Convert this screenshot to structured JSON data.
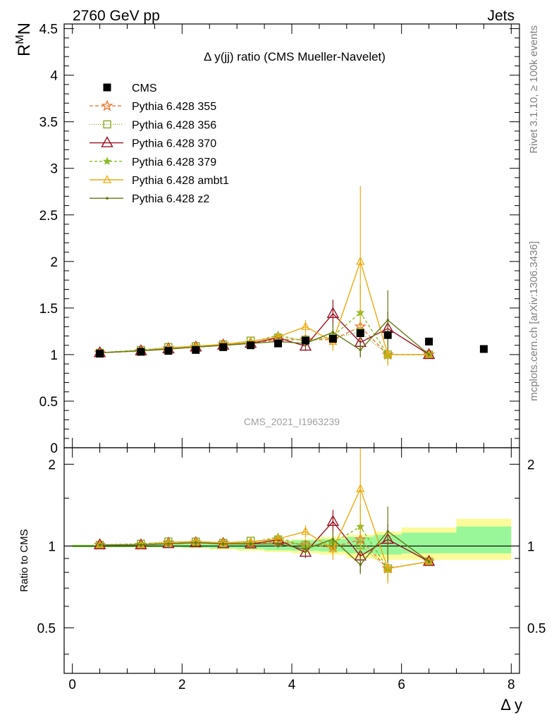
{
  "header": {
    "left": "2760 GeV pp",
    "right": "Jets",
    "side_top": "Rivet 3.1.10, ≥ 100k events",
    "side_bottom": "mcplots.cern.ch [arXiv:1306.3436]"
  },
  "chart_data": {
    "type": "line",
    "title": "Δ y(jj) ratio (CMS Mueller-Navelet)",
    "analysis_label": "CMS_2021_I1963239",
    "xlabel": "Δ y",
    "ylabel": "R^M N",
    "ratio_ylabel": "Ratio to CMS",
    "xlim": [
      -0.15,
      8.15
    ],
    "ylim": [
      0,
      4.55
    ],
    "ratio_ylim": [
      0.34,
      2.3
    ],
    "x_ticks": [
      "0",
      "2",
      "4",
      "6",
      "8"
    ],
    "y_ticks": [
      "0",
      "0.5",
      "1",
      "1.5",
      "2",
      "2.5",
      "3",
      "3.5",
      "4",
      "4.5"
    ],
    "ratio_ticks": [
      "0.5",
      "1",
      "2"
    ],
    "legend_position": "top-left",
    "colors": {
      "cms": "#000000",
      "p355": "#ee7733",
      "p356": "#88aa22",
      "p370": "#991122",
      "p379": "#88bb22",
      "ambt1": "#eeaa11",
      "z2": "#667711",
      "band_inner": "#99f799",
      "band_outer": "#fbfb99"
    },
    "cms": {
      "name": "CMS",
      "x": [
        0.5,
        1.25,
        1.75,
        2.25,
        2.75,
        3.25,
        3.75,
        4.25,
        4.75,
        5.25,
        5.75,
        6.5,
        7.5
      ],
      "y": [
        1.01,
        1.03,
        1.04,
        1.05,
        1.08,
        1.1,
        1.12,
        1.15,
        1.17,
        1.23,
        1.21,
        1.14,
        1.06
      ],
      "bins": [
        [
          0,
          1
        ],
        [
          1,
          1.5
        ],
        [
          1.5,
          2
        ],
        [
          2,
          2.5
        ],
        [
          2.5,
          3
        ],
        [
          3,
          3.5
        ],
        [
          3.5,
          4
        ],
        [
          4,
          4.5
        ],
        [
          4.5,
          5
        ],
        [
          5,
          5.5
        ],
        [
          5.5,
          6
        ],
        [
          6,
          7
        ],
        [
          7,
          8
        ]
      ],
      "band_inner": [
        [
          0.99,
          1.01
        ],
        [
          0.99,
          1.01
        ],
        [
          0.99,
          1.02
        ],
        [
          0.985,
          1.02
        ],
        [
          0.98,
          1.025
        ],
        [
          0.975,
          1.03
        ],
        [
          0.965,
          1.04
        ],
        [
          0.96,
          1.05
        ],
        [
          0.955,
          1.06
        ],
        [
          0.94,
          1.08
        ],
        [
          0.93,
          1.1
        ],
        [
          0.94,
          1.12
        ],
        [
          0.94,
          1.18
        ]
      ],
      "band_outer": [
        [
          0.985,
          1.015
        ],
        [
          0.985,
          1.015
        ],
        [
          0.985,
          1.02
        ],
        [
          0.98,
          1.025
        ],
        [
          0.97,
          1.03
        ],
        [
          0.96,
          1.04
        ],
        [
          0.95,
          1.05
        ],
        [
          0.94,
          1.06
        ],
        [
          0.93,
          1.08
        ],
        [
          0.9,
          1.1
        ],
        [
          0.89,
          1.13
        ],
        [
          0.89,
          1.17
        ],
        [
          0.89,
          1.26
        ]
      ]
    },
    "series": [
      {
        "name": "Pythia 6.428 355",
        "key": "p355",
        "marker": "star",
        "dash": "5,3",
        "x": [
          0.5,
          1.25,
          1.75,
          2.25,
          2.75,
          3.25,
          3.75,
          4.25,
          4.75,
          5.25,
          5.75,
          6.5
        ],
        "y": [
          1.02,
          1.04,
          1.07,
          1.08,
          1.11,
          1.12,
          1.16,
          1.16,
          1.16,
          1.3,
          1.0,
          1.0
        ],
        "err": [
          0.01,
          0.01,
          0.01,
          0.02,
          0.02,
          0.02,
          0.04,
          0.05,
          0.08,
          0.15,
          0.1,
          0.0
        ]
      },
      {
        "name": "Pythia 6.428 356",
        "key": "p356",
        "marker": "square",
        "dash": "1,2",
        "x": [
          0.5,
          1.25,
          1.75,
          2.25,
          2.75,
          3.25,
          3.75,
          4.25,
          4.75,
          5.25,
          5.75,
          6.5
        ],
        "y": [
          1.02,
          1.05,
          1.08,
          1.09,
          1.11,
          1.15,
          1.18,
          1.16,
          1.18,
          1.24,
          1.0,
          1.0
        ],
        "err": [
          0.01,
          0.01,
          0.01,
          0.02,
          0.02,
          0.02,
          0.04,
          0.05,
          0.08,
          0.15,
          0.1,
          0.0
        ]
      },
      {
        "name": "Pythia 6.428 370",
        "key": "p370",
        "marker": "triangle-open",
        "dash": "",
        "x": [
          0.5,
          1.25,
          1.75,
          2.25,
          2.75,
          3.25,
          3.75,
          4.25,
          4.75,
          5.25,
          5.75,
          6.5
        ],
        "y": [
          1.02,
          1.04,
          1.06,
          1.08,
          1.1,
          1.12,
          1.18,
          1.09,
          1.44,
          1.13,
          1.28,
          1.0
        ],
        "err": [
          0.01,
          0.01,
          0.01,
          0.02,
          0.02,
          0.02,
          0.04,
          0.05,
          0.15,
          0.15,
          0.18,
          0.0
        ]
      },
      {
        "name": "Pythia 6.428 379",
        "key": "p379",
        "marker": "star-small",
        "dash": "4,3",
        "x": [
          0.5,
          1.25,
          1.75,
          2.25,
          2.75,
          3.25,
          3.75,
          4.25,
          4.75,
          5.25,
          5.75,
          6.5
        ],
        "y": [
          1.02,
          1.05,
          1.07,
          1.09,
          1.11,
          1.13,
          1.21,
          1.14,
          1.2,
          1.45,
          1.0,
          1.0
        ],
        "err": [
          0.01,
          0.01,
          0.01,
          0.02,
          0.02,
          0.02,
          0.04,
          0.05,
          0.08,
          0.3,
          0.1,
          0.0
        ]
      },
      {
        "name": "Pythia 6.428 ambt1",
        "key": "ambt1",
        "marker": "triangle-small",
        "dash": "",
        "x": [
          0.5,
          1.25,
          1.75,
          2.25,
          2.75,
          3.25,
          3.75,
          4.25,
          4.75,
          5.25,
          5.75,
          6.5
        ],
        "y": [
          1.02,
          1.04,
          1.07,
          1.09,
          1.11,
          1.14,
          1.19,
          1.3,
          1.14,
          2.0,
          1.0,
          1.0
        ],
        "err": [
          0.01,
          0.01,
          0.01,
          0.02,
          0.02,
          0.02,
          0.04,
          0.07,
          0.1,
          0.81,
          0.12,
          0.0
        ]
      },
      {
        "name": "Pythia 6.428 z2",
        "key": "z2",
        "marker": "dot",
        "dash": "",
        "x": [
          0.5,
          1.25,
          1.75,
          2.25,
          2.75,
          3.25,
          3.75,
          4.25,
          4.75,
          5.25,
          5.75,
          6.5
        ],
        "y": [
          1.02,
          1.04,
          1.06,
          1.08,
          1.1,
          1.12,
          1.14,
          1.12,
          1.24,
          1.05,
          1.37,
          1.0
        ],
        "err": [
          0.01,
          0.01,
          0.01,
          0.02,
          0.02,
          0.02,
          0.04,
          0.05,
          0.1,
          0.08,
          0.32,
          0.0
        ]
      }
    ]
  }
}
